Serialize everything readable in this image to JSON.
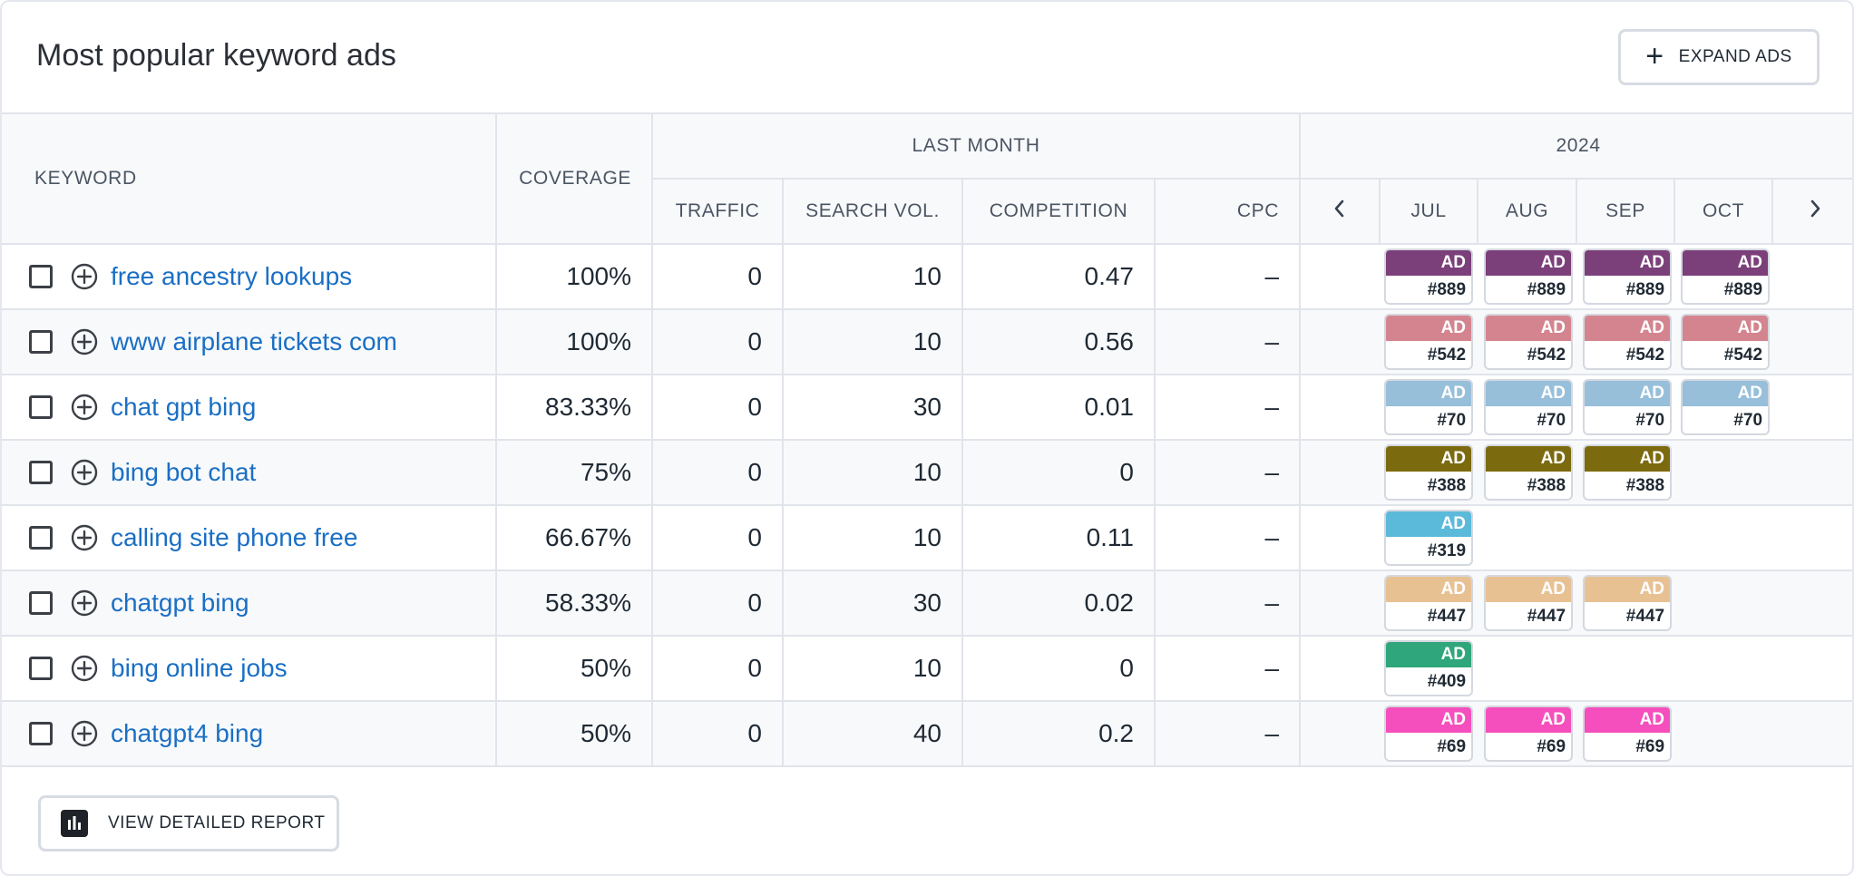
{
  "header": {
    "title": "Most popular keyword ads",
    "expand_label": "EXPAND ADS"
  },
  "columns": {
    "keyword": "KEYWORD",
    "coverage": "COVERAGE",
    "last_month": "LAST MONTH",
    "traffic": "TRAFFIC",
    "search_vol": "SEARCH VOL.",
    "competition": "COMPETITION",
    "cpc": "CPC",
    "year": "2024",
    "months": [
      "JUL",
      "AUG",
      "SEP",
      "OCT"
    ]
  },
  "ad_label": "AD",
  "rows": [
    {
      "keyword": "free ancestry lookups",
      "coverage": "100%",
      "traffic": "0",
      "search_vol": "10",
      "competition": "0.47",
      "cpc": "–",
      "ad_color": "#7b3f7a",
      "ads": [
        "#889",
        "#889",
        "#889",
        "#889"
      ]
    },
    {
      "keyword": "www airplane tickets com",
      "coverage": "100%",
      "traffic": "0",
      "search_vol": "10",
      "competition": "0.56",
      "cpc": "–",
      "ad_color": "#d4848f",
      "ads": [
        "#542",
        "#542",
        "#542",
        "#542"
      ]
    },
    {
      "keyword": "chat gpt bing",
      "coverage": "83.33%",
      "traffic": "0",
      "search_vol": "30",
      "competition": "0.01",
      "cpc": "–",
      "ad_color": "#97bfda",
      "ads": [
        "#70",
        "#70",
        "#70",
        "#70"
      ]
    },
    {
      "keyword": "bing bot chat",
      "coverage": "75%",
      "traffic": "0",
      "search_vol": "10",
      "competition": "0",
      "cpc": "–",
      "ad_color": "#7c6a0e",
      "ads": [
        "#388",
        "#388",
        "#388",
        null
      ]
    },
    {
      "keyword": "calling site phone free",
      "coverage": "66.67%",
      "traffic": "0",
      "search_vol": "10",
      "competition": "0.11",
      "cpc": "–",
      "ad_color": "#5bbad9",
      "ads": [
        "#319",
        null,
        null,
        null
      ]
    },
    {
      "keyword": "chatgpt bing",
      "coverage": "58.33%",
      "traffic": "0",
      "search_vol": "30",
      "competition": "0.02",
      "cpc": "–",
      "ad_color": "#e8c193",
      "ads": [
        "#447",
        "#447",
        "#447",
        null
      ]
    },
    {
      "keyword": "bing online jobs",
      "coverage": "50%",
      "traffic": "0",
      "search_vol": "10",
      "competition": "0",
      "cpc": "–",
      "ad_color": "#2fa67b",
      "ads": [
        "#409",
        null,
        null,
        null
      ]
    },
    {
      "keyword": "chatgpt4 bing",
      "coverage": "50%",
      "traffic": "0",
      "search_vol": "40",
      "competition": "0.2",
      "cpc": "–",
      "ad_color": "#f54fbd",
      "ads": [
        "#69",
        "#69",
        "#69",
        null
      ]
    }
  ],
  "footer": {
    "report_label": "VIEW DETAILED REPORT"
  },
  "icons": {
    "prev": "chevron-left-icon",
    "next": "chevron-right-icon",
    "add": "plus-circle-icon",
    "report": "bar-chart-icon",
    "expand": "plus-icon"
  }
}
